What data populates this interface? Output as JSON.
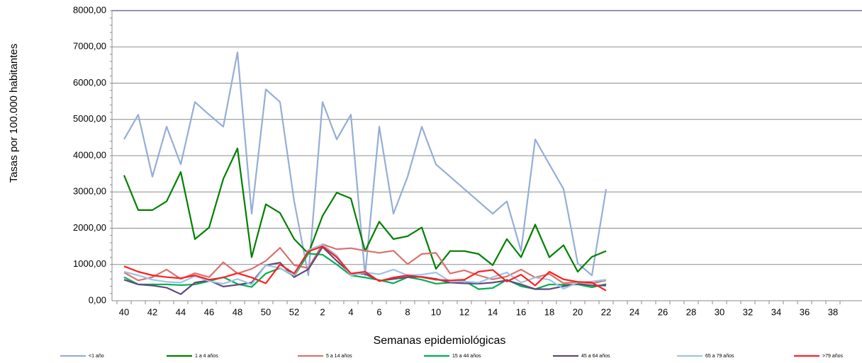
{
  "chart_data": {
    "type": "line",
    "y_label": "Tasas por 100.000 habitantes",
    "x_label": "Semanas epidemiológicas",
    "categories": [
      "40",
      null,
      "42",
      null,
      "44",
      null,
      "46",
      null,
      "48",
      null,
      "50",
      null,
      "52",
      null,
      "2",
      null,
      "4",
      null,
      "6",
      null,
      "8",
      null,
      "10",
      null,
      "12",
      null,
      "14",
      null,
      "16",
      null,
      "18",
      null,
      "20",
      null,
      "22",
      null,
      "24",
      null,
      "26",
      null,
      "28",
      null,
      "30",
      null,
      "32",
      null,
      "34",
      null,
      "36",
      null,
      "38",
      null
    ],
    "ylim": [
      0,
      8000
    ],
    "yticks": [
      {
        "value": 0,
        "label": "0,00"
      },
      {
        "value": 1000,
        "label": "1000,00"
      },
      {
        "value": 2000,
        "label": "2000,00"
      },
      {
        "value": 3000,
        "label": "3000,00"
      },
      {
        "value": 4000,
        "label": "4000,00"
      },
      {
        "value": 5000,
        "label": "5000,00"
      },
      {
        "value": 6000,
        "label": "6000,00"
      },
      {
        "value": 7000,
        "label": "7000,00"
      },
      {
        "value": 8000,
        "label": "8000,00"
      }
    ],
    "grid": true,
    "legend": "bottom",
    "series": [
      {
        "name": "<1 año",
        "color": "#95aed6",
        "values": [
          4450,
          5130,
          3420,
          4800,
          3760,
          5480,
          5130,
          4800,
          6850,
          2400,
          5830,
          5480,
          2740,
          700,
          5480,
          4450,
          5130,
          700,
          4800,
          2400,
          3420,
          4800,
          3760,
          3420,
          3080,
          2740,
          2400,
          2740,
          1370,
          4450,
          3760,
          3080,
          1030,
          700,
          3080,
          null,
          null,
          null,
          null,
          null,
          null,
          null,
          null,
          null,
          null,
          null,
          null,
          null,
          null,
          null,
          null,
          null
        ]
      },
      {
        "name": "1 a 4 años",
        "color": "#008000",
        "values": [
          3460,
          2500,
          2500,
          2740,
          3550,
          1700,
          2020,
          3360,
          4200,
          1200,
          2660,
          2420,
          1700,
          1300,
          2340,
          2980,
          2820,
          1370,
          2180,
          1700,
          1780,
          2020,
          880,
          1370,
          1370,
          1290,
          980,
          1700,
          1200,
          2100,
          1200,
          1530,
          800,
          1210,
          1370,
          null,
          null,
          null,
          null,
          null,
          null,
          null,
          null,
          null,
          null,
          null,
          null,
          null,
          null,
          null,
          null,
          null
        ]
      },
      {
        "name": "5 a 14 años",
        "color": "#d9726e",
        "values": [
          780,
          560,
          650,
          860,
          600,
          760,
          650,
          1060,
          750,
          880,
          1100,
          1460,
          980,
          900,
          1560,
          1420,
          1450,
          1380,
          1320,
          1380,
          1010,
          1290,
          1320,
          750,
          840,
          700,
          590,
          670,
          860,
          640,
          740,
          480,
          520,
          480,
          560,
          null,
          null,
          null,
          null,
          null,
          null,
          null,
          null,
          null,
          null,
          null,
          null,
          null,
          null,
          null,
          null,
          null
        ]
      },
      {
        "name": "15 a 44 años",
        "color": "#00b050",
        "values": [
          650,
          450,
          450,
          450,
          430,
          450,
          540,
          650,
          460,
          380,
          750,
          900,
          680,
          1300,
          1270,
          1000,
          700,
          640,
          570,
          480,
          650,
          580,
          470,
          500,
          550,
          320,
          350,
          580,
          400,
          320,
          450,
          440,
          450,
          370,
          460,
          null,
          null,
          null,
          null,
          null,
          null,
          null,
          null,
          null,
          null,
          null,
          null,
          null,
          null,
          null,
          null,
          null
        ]
      },
      {
        "name": "45 a 64 años",
        "color": "#604a7b",
        "values": [
          580,
          450,
          420,
          360,
          180,
          500,
          560,
          390,
          440,
          500,
          980,
          1050,
          650,
          870,
          1480,
          1100,
          750,
          740,
          550,
          600,
          650,
          660,
          600,
          500,
          480,
          470,
          500,
          560,
          450,
          320,
          320,
          400,
          470,
          420,
          420,
          null,
          null,
          null,
          null,
          null,
          null,
          null,
          null,
          null,
          null,
          null,
          null,
          null,
          null,
          null,
          null,
          null
        ]
      },
      {
        "name": "65 a 79 años",
        "color": "#9dc3e6",
        "values": [
          800,
          700,
          580,
          520,
          500,
          680,
          540,
          470,
          600,
          450,
          980,
          900,
          700,
          1400,
          1550,
          1250,
          700,
          780,
          730,
          860,
          700,
          720,
          780,
          530,
          530,
          500,
          650,
          780,
          500,
          640,
          580,
          330,
          500,
          530,
          580,
          null,
          null,
          null,
          null,
          null,
          null,
          null,
          null,
          null,
          null,
          null,
          null,
          null,
          null,
          null,
          null,
          null
        ]
      },
      {
        "name": ">79 años",
        "color": "#ff2020",
        "values": [
          950,
          800,
          700,
          650,
          620,
          700,
          580,
          640,
          760,
          640,
          480,
          1000,
          750,
          1360,
          1500,
          1200,
          750,
          800,
          540,
          640,
          700,
          650,
          580,
          560,
          580,
          800,
          850,
          530,
          720,
          420,
          800,
          590,
          520,
          500,
          280,
          null,
          null,
          null,
          null,
          null,
          null,
          null,
          null,
          null,
          null,
          null,
          null,
          null,
          null,
          null,
          null,
          null
        ]
      }
    ]
  }
}
